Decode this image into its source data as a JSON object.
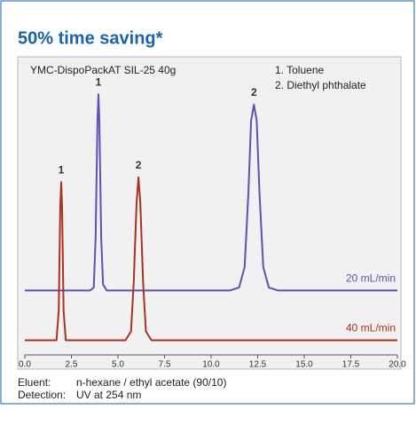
{
  "title": "50% time saving*",
  "chart_data": {
    "type": "line",
    "subtitle": "YMC-DispoPackAT SIL-25 40g",
    "notes": [
      "1. Toluene",
      "2. Diethyl phthalate"
    ],
    "xlim": [
      0,
      20
    ],
    "xticks": [
      {
        "value": 0,
        "label": "0.0"
      },
      2.5,
      {
        "value": 5,
        "label": "5.0"
      },
      7.5,
      {
        "value": 10,
        "label": "10.0"
      },
      12.5,
      {
        "value": 15,
        "label": "15.0"
      },
      17.5,
      {
        "value": 20,
        "label": "20.0"
      }
    ],
    "ylim": [
      0,
      100
    ],
    "series": [
      {
        "name": "20 mL/min",
        "color": "#5a52b4",
        "x": [
          0,
          3.5,
          3.7,
          3.8,
          3.9,
          3.95,
          4.0,
          4.1,
          4.2,
          4.4,
          11.0,
          11.5,
          11.8,
          12.0,
          12.15,
          12.3,
          12.45,
          12.6,
          12.8,
          13.1,
          13.6,
          20
        ],
        "values": [
          22,
          22,
          23,
          40,
          80,
          89,
          80,
          40,
          24,
          22,
          22,
          23,
          30,
          55,
          80,
          85.5,
          80,
          55,
          30,
          23,
          22,
          22
        ]
      },
      {
        "name": "40 mL/min",
        "color": "#a8321f",
        "x": [
          0,
          1.7,
          1.82,
          1.9,
          1.95,
          2.0,
          2.08,
          2.2,
          5.4,
          5.7,
          5.85,
          6.0,
          6.1,
          6.2,
          6.35,
          6.5,
          6.8,
          20
        ],
        "values": [
          5,
          5,
          15,
          50,
          59,
          50,
          15,
          5,
          5,
          8,
          25,
          52,
          60.6,
          52,
          25,
          8,
          5,
          5
        ]
      }
    ],
    "annotations": [
      {
        "text": "1",
        "x": 3.95,
        "y": 89
      },
      {
        "text": "2",
        "x": 12.3,
        "y": 85.5
      },
      {
        "text": "1",
        "x": 1.95,
        "y": 59
      },
      {
        "text": "2",
        "x": 6.1,
        "y": 60.6
      }
    ]
  },
  "footer": [
    {
      "label": "Eluent:",
      "text": "n-hexane / ethyl acetate (90/10)"
    },
    {
      "label": "Detection:",
      "text": "UV at 254 nm"
    }
  ]
}
